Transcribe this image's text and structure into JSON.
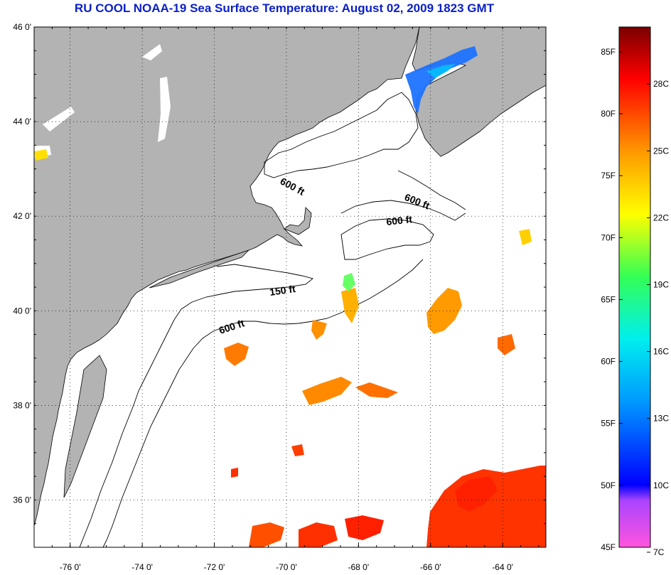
{
  "title": "RU COOL  NOAA-19  Sea Surface Temperature:  August 02, 2009 1823 GMT",
  "map": {
    "lon_range": [
      -77,
      -62.8
    ],
    "lat_range": [
      35,
      46
    ],
    "lon_ticks": [
      {
        "value": -76,
        "label": "-76 0'"
      },
      {
        "value": -74,
        "label": "-74 0'"
      },
      {
        "value": -72,
        "label": "-72 0'"
      },
      {
        "value": -70,
        "label": "-70 0'"
      },
      {
        "value": -68,
        "label": "-68 0'"
      },
      {
        "value": -66,
        "label": "-66 0'"
      },
      {
        "value": -64,
        "label": "-64 0'"
      }
    ],
    "lat_ticks": [
      {
        "value": 46,
        "label": "46 0'"
      },
      {
        "value": 44,
        "label": "44 0'"
      },
      {
        "value": 42,
        "label": "42 0'"
      },
      {
        "value": 40,
        "label": "40 0'"
      },
      {
        "value": 38,
        "label": "38 0'"
      },
      {
        "value": 36,
        "label": "36 0'"
      }
    ],
    "grid": "dotted",
    "land_color": "#b3b3b3",
    "contours": [
      {
        "label": "600 ft"
      },
      {
        "label": "600 ft"
      },
      {
        "label": "600 ft"
      },
      {
        "label": "150 ft"
      },
      {
        "label": "600 ft"
      }
    ]
  },
  "colorbar": {
    "range_f": [
      45,
      87
    ],
    "fahrenheit": [
      {
        "value": 85,
        "label": "85F"
      },
      {
        "value": 80,
        "label": "80F"
      },
      {
        "value": 75,
        "label": "75F"
      },
      {
        "value": 70,
        "label": "70F"
      },
      {
        "value": 65,
        "label": "65F"
      },
      {
        "value": 60,
        "label": "60F"
      },
      {
        "value": 55,
        "label": "55F"
      },
      {
        "value": 50,
        "label": "50F"
      },
      {
        "value": 45,
        "label": "45F"
      }
    ],
    "celsius": [
      {
        "value": 28,
        "label": "28C"
      },
      {
        "value": 25,
        "label": "25C"
      },
      {
        "value": 22,
        "label": "22C"
      },
      {
        "value": 19,
        "label": "19C"
      },
      {
        "value": 16,
        "label": "16C"
      },
      {
        "value": 13,
        "label": "13C"
      },
      {
        "value": 10,
        "label": "10C"
      },
      {
        "value": 7,
        "label": "7C"
      }
    ],
    "colors": [
      "#ff44dd",
      "#9933ff",
      "#0000ff",
      "#00ccff",
      "#00ff66",
      "#ffff00",
      "#ff9900",
      "#ff0000",
      "#800000"
    ]
  }
}
